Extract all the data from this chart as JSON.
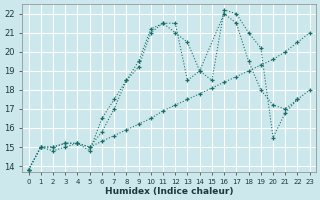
{
  "xlabel": "Humidex (Indice chaleur)",
  "bg_color": "#cce8ec",
  "grid_color": "#ffffff",
  "line_color": "#1a6e6a",
  "xlim": [
    -0.5,
    23.5
  ],
  "ylim": [
    13.7,
    22.5
  ],
  "xticks": [
    0,
    1,
    2,
    3,
    4,
    5,
    6,
    7,
    8,
    9,
    10,
    11,
    12,
    13,
    14,
    15,
    16,
    17,
    18,
    19,
    20,
    21,
    22,
    23
  ],
  "yticks": [
    14,
    15,
    16,
    17,
    18,
    19,
    20,
    21,
    22
  ],
  "series": [
    {
      "x": [
        0,
        1,
        2,
        3,
        4,
        5,
        6,
        7,
        8,
        9,
        10,
        11,
        12,
        13,
        14,
        15,
        16,
        17,
        18,
        19,
        20,
        21,
        22,
        23
      ],
      "y": [
        13.8,
        15.0,
        15.0,
        15.2,
        15.2,
        15.0,
        15.3,
        15.6,
        15.9,
        16.2,
        16.5,
        16.9,
        17.2,
        17.5,
        17.8,
        18.1,
        18.4,
        18.7,
        19.0,
        19.3,
        19.6,
        20.0,
        20.5,
        21.0
      ]
    },
    {
      "x": [
        0,
        1,
        2,
        3,
        4,
        5,
        6,
        7,
        8,
        9,
        10,
        11,
        12,
        13,
        14,
        16,
        17,
        18,
        19,
        20,
        21,
        22,
        23
      ],
      "y": [
        13.8,
        15.0,
        14.8,
        15.0,
        15.2,
        14.8,
        16.5,
        17.5,
        18.5,
        19.5,
        21.2,
        21.5,
        21.5,
        18.5,
        19.0,
        22.0,
        21.5,
        19.5,
        18.0,
        17.2,
        17.0,
        17.5,
        18.0
      ]
    },
    {
      "x": [
        0,
        1,
        2,
        3,
        4,
        5,
        6,
        7,
        8,
        9,
        10,
        11,
        12,
        13,
        14,
        15,
        16,
        17,
        18,
        19,
        20,
        21,
        22
      ],
      "y": [
        13.8,
        15.0,
        15.0,
        15.2,
        15.2,
        15.0,
        15.8,
        17.0,
        18.5,
        19.2,
        21.0,
        21.5,
        21.0,
        20.5,
        19.0,
        18.5,
        22.2,
        22.0,
        21.0,
        20.2,
        15.5,
        16.8,
        17.5
      ]
    }
  ]
}
